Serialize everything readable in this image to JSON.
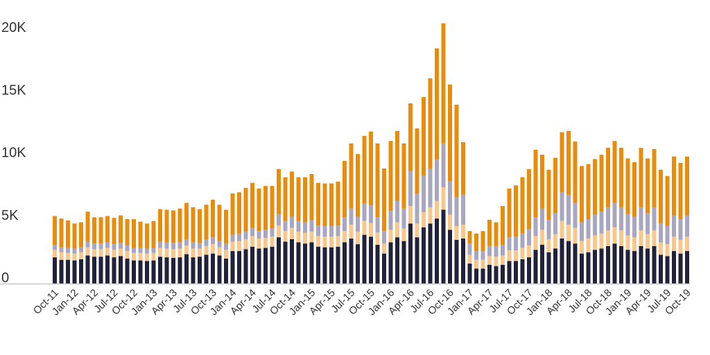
{
  "chart_data": {
    "type": "bar",
    "stacked": true,
    "title": "",
    "xlabel": "",
    "ylabel": "",
    "ylim": [
      0,
      21000
    ],
    "y_ticks": [
      {
        "value": 0,
        "label": "0"
      },
      {
        "value": 5000,
        "label": "5K"
      },
      {
        "value": 10000,
        "label": "10K"
      },
      {
        "value": 15000,
        "label": "15K"
      },
      {
        "value": 20000,
        "label": "20K"
      }
    ],
    "grid": false,
    "legend": "none",
    "x_tick_labels": [
      "Oct-11",
      "Jan-12",
      "Apr-12",
      "Jul-12",
      "Oct-12",
      "Jan-13",
      "Apr-13",
      "Jul-13",
      "Oct-13",
      "Jan-14",
      "Apr-14",
      "Jul-14",
      "Oct-14",
      "Jan-15",
      "Apr-15",
      "Jul-15",
      "Oct-15",
      "Jan-16",
      "Apr-16",
      "Jul-16",
      "Oct-16",
      "Jan-17",
      "Apr-17",
      "Jul-17",
      "Oct-17",
      "Jan-18",
      "Apr-18",
      "Jul-18",
      "Oct-18",
      "Jan-19",
      "Apr-19",
      "Jul-19",
      "Oct-19"
    ],
    "categories": [
      "Oct-11",
      "Nov-11",
      "Dec-11",
      "Jan-12",
      "Feb-12",
      "Mar-12",
      "Apr-12",
      "May-12",
      "Jun-12",
      "Jul-12",
      "Aug-12",
      "Sep-12",
      "Oct-12",
      "Nov-12",
      "Dec-12",
      "Jan-13",
      "Feb-13",
      "Mar-13",
      "Apr-13",
      "May-13",
      "Jun-13",
      "Jul-13",
      "Aug-13",
      "Sep-13",
      "Oct-13",
      "Nov-13",
      "Dec-13",
      "Jan-14",
      "Feb-14",
      "Mar-14",
      "Apr-14",
      "May-14",
      "Jun-14",
      "Jul-14",
      "Aug-14",
      "Sep-14",
      "Oct-14",
      "Nov-14",
      "Dec-14",
      "Jan-15",
      "Feb-15",
      "Mar-15",
      "Apr-15",
      "May-15",
      "Jun-15",
      "Jul-15",
      "Aug-15",
      "Sep-15",
      "Oct-15",
      "Nov-15",
      "Dec-15",
      "Jan-16",
      "Feb-16",
      "Mar-16",
      "Apr-16",
      "May-16",
      "Jun-16",
      "Jul-16",
      "Aug-16",
      "Sep-16",
      "Oct-16",
      "Nov-16",
      "Dec-16",
      "Jan-17",
      "Feb-17",
      "Mar-17",
      "Apr-17",
      "May-17",
      "Jun-17",
      "Jul-17",
      "Aug-17",
      "Sep-17",
      "Oct-17",
      "Nov-17",
      "Dec-17",
      "Jan-18",
      "Feb-18",
      "Mar-18",
      "Apr-18",
      "May-18",
      "Jun-18",
      "Jul-18",
      "Aug-18",
      "Sep-18",
      "Oct-18",
      "Nov-18",
      "Dec-18",
      "Jan-19",
      "Feb-19",
      "Mar-19",
      "Apr-19",
      "May-19",
      "Jun-19",
      "Jul-19",
      "Aug-19",
      "Sep-19",
      "Oct-19"
    ],
    "series": [
      {
        "color": "#22213a",
        "values": [
          2100,
          1900,
          1900,
          1850,
          1950,
          2250,
          2150,
          2150,
          2250,
          2100,
          2200,
          2000,
          1850,
          1850,
          1800,
          1850,
          2150,
          2100,
          2050,
          2100,
          2350,
          2100,
          2150,
          2300,
          2400,
          2250,
          2000,
          2600,
          2600,
          2750,
          2950,
          2800,
          2850,
          2950,
          3700,
          3350,
          3550,
          3300,
          3200,
          3300,
          2950,
          2900,
          2900,
          2950,
          3300,
          3600,
          3150,
          3900,
          3750,
          3100,
          2400,
          3300,
          3700,
          3400,
          4800,
          3700,
          4500,
          4800,
          5200,
          5900,
          4300,
          3500,
          3600,
          1600,
          1200,
          1200,
          1500,
          1400,
          1500,
          1800,
          1800,
          1950,
          2100,
          2700,
          3100,
          2500,
          2800,
          3600,
          3400,
          3200,
          2400,
          2500,
          2700,
          2800,
          3000,
          3200,
          3000,
          2700,
          2600,
          3000,
          2800,
          3000,
          2300,
          2200,
          2600,
          2400,
          2600
        ]
      },
      {
        "color": "#f6c88e",
        "values": [
          600,
          600,
          550,
          550,
          550,
          650,
          600,
          600,
          600,
          600,
          600,
          600,
          600,
          600,
          600,
          600,
          700,
          700,
          700,
          700,
          700,
          700,
          650,
          700,
          750,
          650,
          700,
          750,
          800,
          800,
          850,
          800,
          800,
          800,
          950,
          850,
          900,
          850,
          850,
          850,
          850,
          850,
          850,
          850,
          900,
          1100,
          1000,
          1100,
          1100,
          1000,
          800,
          1000,
          1200,
          1000,
          1400,
          1100,
          1200,
          1300,
          1400,
          1800,
          1200,
          1100,
          1100,
          700,
          700,
          700,
          700,
          750,
          750,
          850,
          850,
          900,
          950,
          1100,
          1200,
          1050,
          1150,
          1400,
          1300,
          1250,
          1000,
          1100,
          1150,
          1200,
          1250,
          1300,
          1250,
          1150,
          1100,
          1250,
          1150,
          1250,
          1000,
          950,
          1150,
          1100,
          1150
        ]
      },
      {
        "color": "#a9a7c0",
        "values": [
          400,
          400,
          400,
          400,
          400,
          450,
          450,
          450,
          450,
          450,
          450,
          450,
          400,
          400,
          400,
          400,
          500,
          500,
          500,
          500,
          500,
          500,
          450,
          500,
          550,
          500,
          500,
          550,
          600,
          600,
          650,
          600,
          650,
          650,
          900,
          800,
          900,
          850,
          850,
          900,
          850,
          850,
          850,
          850,
          1100,
          1300,
          1200,
          1400,
          1400,
          1200,
          1000,
          1500,
          1700,
          1600,
          2800,
          2400,
          2900,
          3100,
          3300,
          3500,
          2700,
          2300,
          2400,
          900,
          700,
          700,
          800,
          850,
          850,
          1050,
          1100,
          1150,
          1300,
          1500,
          1700,
          1550,
          1700,
          2300,
          2400,
          2000,
          1500,
          1550,
          1650,
          1750,
          1850,
          1950,
          1850,
          1700,
          1650,
          1850,
          1700,
          1850,
          1500,
          1450,
          1700,
          1650,
          1700
        ]
      },
      {
        "color": "#e88c0e",
        "values": [
          2300,
          2300,
          2200,
          2000,
          2000,
          2400,
          2100,
          2100,
          2100,
          2100,
          2200,
          2100,
          2300,
          2100,
          2000,
          2150,
          2600,
          2600,
          2600,
          2700,
          2900,
          2800,
          2700,
          2800,
          3000,
          2900,
          2700,
          3300,
          3300,
          3500,
          3600,
          3400,
          3500,
          3400,
          3600,
          3500,
          3600,
          3500,
          3600,
          3700,
          3400,
          3400,
          3400,
          3500,
          4500,
          5200,
          5000,
          5400,
          5900,
          5900,
          5000,
          5600,
          5600,
          5200,
          5400,
          5200,
          6300,
          7200,
          8900,
          9600,
          7700,
          7400,
          4200,
          1000,
          1400,
          1600,
          2100,
          1900,
          3100,
          3900,
          4100,
          4500,
          4800,
          5400,
          4300,
          4000,
          4400,
          4800,
          5100,
          4900,
          4500,
          4400,
          4450,
          4550,
          4750,
          4950,
          4750,
          4450,
          4350,
          4750,
          4350,
          4650,
          4300,
          4000,
          4700,
          4500,
          4700
        ]
      }
    ]
  }
}
